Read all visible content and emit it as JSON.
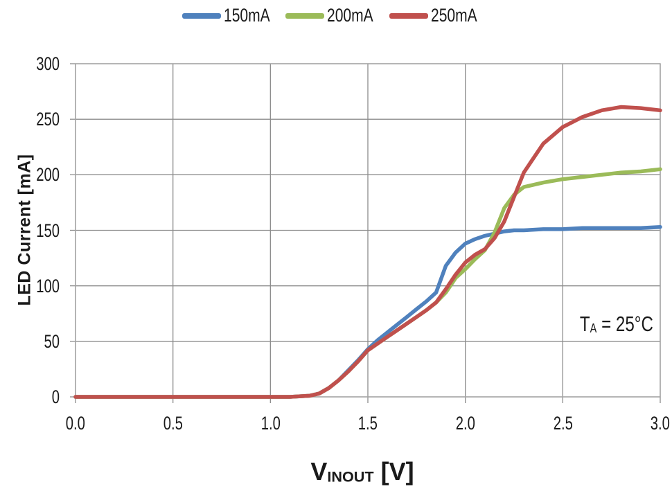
{
  "figure": {
    "annotation": {
      "prefix": "T",
      "subscript": "A",
      "suffix": " = 25°C"
    }
  },
  "chart_data": {
    "type": "line",
    "title": "",
    "ylabel": "LED Current [mA]",
    "xlabel": {
      "prefix": "V",
      "subscript": "INOUT",
      "suffix": " [V]"
    },
    "xlim": [
      0.0,
      3.0
    ],
    "ylim": [
      0,
      300
    ],
    "x_ticks": [
      "0.0",
      "0.5",
      "1.0",
      "1.5",
      "2.0",
      "2.5",
      "3.0"
    ],
    "y_ticks": [
      "0",
      "50",
      "100",
      "150",
      "200",
      "250",
      "300"
    ],
    "grid": true,
    "legend_position": "top-center",
    "grid_color": "#8c8c8c",
    "axis_color": "#a6a6a6",
    "x": [
      0.0,
      0.2,
      0.4,
      0.6,
      0.8,
      1.0,
      1.1,
      1.2,
      1.25,
      1.3,
      1.35,
      1.4,
      1.45,
      1.5,
      1.55,
      1.6,
      1.65,
      1.7,
      1.75,
      1.8,
      1.85,
      1.9,
      1.95,
      2.0,
      2.05,
      2.1,
      2.15,
      2.2,
      2.25,
      2.3,
      2.4,
      2.5,
      2.6,
      2.7,
      2.8,
      2.9,
      3.0
    ],
    "series": [
      {
        "name": "150mA",
        "color": "#4F81BD",
        "values": [
          0,
          0,
          0,
          0,
          0,
          0,
          0,
          1,
          3,
          8,
          15,
          24,
          33,
          43,
          51,
          58,
          65,
          72,
          79,
          86,
          94,
          118,
          130,
          138,
          142,
          145,
          147,
          149,
          150,
          150,
          151,
          151,
          152,
          152,
          152,
          152,
          153
        ]
      },
      {
        "name": "200mA",
        "color": "#9BBB59",
        "values": [
          0,
          0,
          0,
          0,
          0,
          0,
          0,
          1,
          3,
          8,
          15,
          23,
          32,
          42,
          48,
          54,
          60,
          66,
          72,
          78,
          85,
          94,
          107,
          115,
          124,
          132,
          148,
          170,
          182,
          189,
          193,
          196,
          198,
          200,
          202,
          203,
          205
        ]
      },
      {
        "name": "250mA",
        "color": "#C0504D",
        "values": [
          0,
          0,
          0,
          0,
          0,
          0,
          0,
          1,
          3,
          8,
          15,
          23,
          32,
          42,
          48,
          54,
          60,
          66,
          72,
          78,
          85,
          97,
          110,
          121,
          128,
          133,
          143,
          158,
          180,
          202,
          228,
          243,
          252,
          258,
          261,
          260,
          258
        ]
      }
    ]
  }
}
